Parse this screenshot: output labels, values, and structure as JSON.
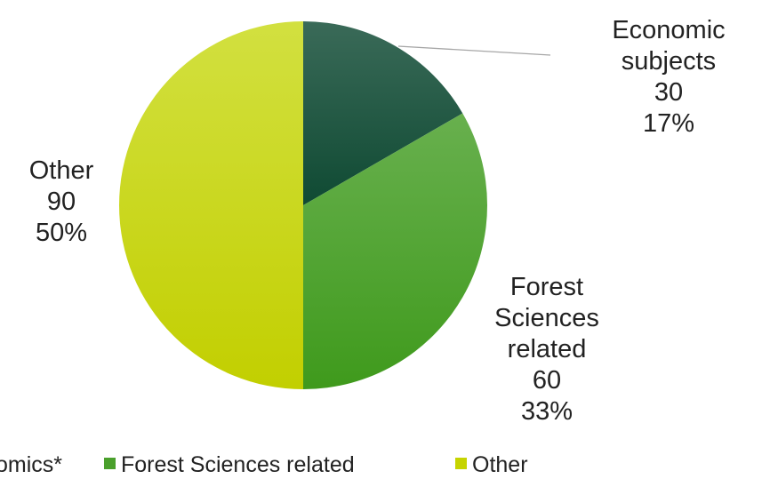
{
  "chart_data": {
    "type": "pie",
    "categories": [
      "Economic subjects",
      "Forest Sciences related",
      "Other"
    ],
    "values": [
      30,
      60,
      90
    ],
    "percentages": [
      "17%",
      "33%",
      "50%"
    ],
    "slice_labels": [
      [
        "Economic",
        "subjects",
        "30",
        "17%"
      ],
      [
        "Forest",
        "Sciences",
        "related",
        "60",
        "33%"
      ],
      [
        "Other",
        "90",
        "50%"
      ]
    ],
    "legend": {
      "position": "bottom",
      "entries": [
        "Economics*",
        "Forest Sciences related",
        "Other"
      ]
    },
    "colors": [
      "#17503a",
      "#4aa02c",
      "#c6d400"
    ],
    "start": "12 o'clock",
    "direction": "clockwise"
  }
}
